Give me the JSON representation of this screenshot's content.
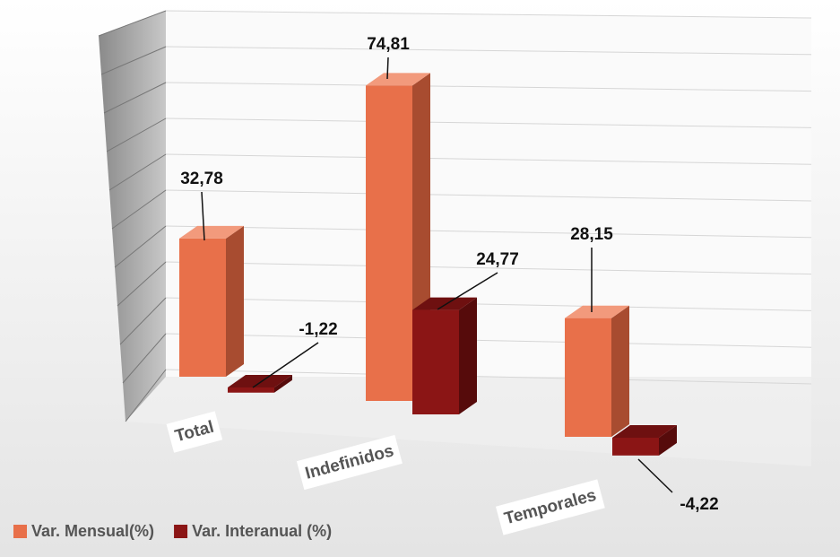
{
  "chart_data": {
    "type": "bar3d",
    "categories": [
      "Total",
      "Indefinidos",
      "Temporales"
    ],
    "series": [
      {
        "name": "Var. Mensual(%)",
        "color": "#e8704a",
        "values": [
          32.78,
          74.81,
          28.15
        ],
        "value_labels": [
          "32,78",
          "74,81",
          "28,15"
        ]
      },
      {
        "name": "Var. Interanual (%)",
        "color": "#8b1515",
        "values": [
          -1.22,
          24.77,
          -4.22
        ],
        "value_labels": [
          "-1,22",
          "24,77",
          "-4,22"
        ]
      }
    ],
    "ylim": [
      0,
      80
    ],
    "yticks": [
      0,
      8,
      16,
      24,
      32,
      40,
      48,
      56,
      64,
      72,
      80
    ],
    "grid": true,
    "legend": "bottom-left"
  }
}
